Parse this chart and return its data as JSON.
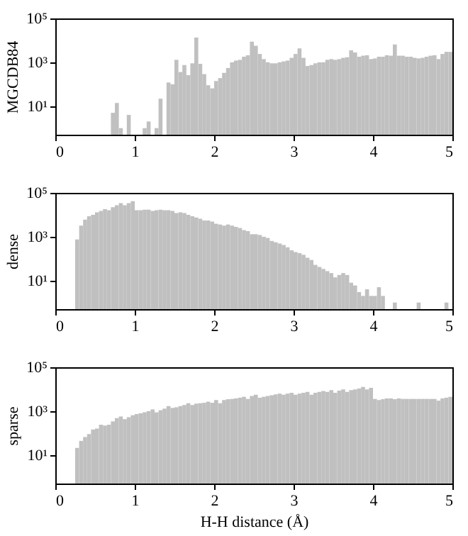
{
  "chart_data": [
    {
      "type": "histogram",
      "ylabel": "MGCDB84",
      "color": "#c0c0c0",
      "log": true,
      "xlim": [
        0,
        5
      ],
      "xticks": [
        0,
        1,
        2,
        3,
        4,
        5
      ],
      "ylim": [
        0.5,
        100000
      ],
      "yticks": [
        {
          "value": 10,
          "label": "10¹"
        },
        {
          "value": 1000,
          "label": "10³"
        },
        {
          "value": 100000,
          "label": "10⁵"
        }
      ],
      "bins": [
        0,
        0.05,
        0.1,
        0.15,
        0.2,
        0.25,
        0.3,
        0.35,
        0.4,
        0.45,
        0.5,
        0.55,
        0.6,
        0.65,
        0.7,
        0.75,
        0.8,
        0.85,
        0.9,
        0.95,
        1,
        1.05,
        1.1,
        1.15,
        1.2,
        1.25,
        1.3,
        1.35,
        1.4,
        1.45,
        1.5,
        1.55,
        1.6,
        1.65,
        1.7,
        1.75,
        1.8,
        1.85,
        1.9,
        1.95,
        2,
        2.05,
        2.1,
        2.15,
        2.2,
        2.25,
        2.3,
        2.35,
        2.4,
        2.45,
        2.5,
        2.55,
        2.6,
        2.65,
        2.7,
        2.75,
        2.8,
        2.85,
        2.9,
        2.95,
        3,
        3.05,
        3.1,
        3.15,
        3.2,
        3.25,
        3.3,
        3.35,
        3.4,
        3.45,
        3.5,
        3.55,
        3.6,
        3.65,
        3.7,
        3.75,
        3.8,
        3.85,
        3.9,
        3.95,
        4,
        4.05,
        4.1,
        4.15,
        4.2,
        4.25,
        4.3,
        4.35,
        4.4,
        4.45,
        4.5,
        4.55,
        4.6,
        4.65,
        4.7,
        4.75,
        4.8,
        4.85,
        4.9,
        4.95,
        5
      ],
      "values": [
        null,
        null,
        null,
        null,
        null,
        null,
        null,
        null,
        null,
        null,
        null,
        null,
        null,
        null,
        5,
        14,
        1,
        null,
        4,
        null,
        null,
        null,
        1,
        2,
        null,
        1,
        22,
        null,
        120,
        100,
        1300,
        360,
        750,
        260,
        900,
        13500,
        850,
        290,
        90,
        65,
        140,
        190,
        330,
        550,
        1000,
        1200,
        1300,
        1800,
        2100,
        8700,
        5700,
        2400,
        1400,
        1000,
        900,
        900,
        1000,
        1100,
        1200,
        1600,
        2400,
        4300,
        1600,
        680,
        750,
        900,
        1000,
        1000,
        1300,
        1400,
        1300,
        1400,
        1600,
        1700,
        3500,
        2800,
        1800,
        2000,
        2100,
        1400,
        1500,
        1800,
        1800,
        2100,
        2000,
        6500,
        2000,
        2000,
        1800,
        1800,
        1600,
        1500,
        1600,
        1800,
        2000,
        2100,
        1400,
        2400,
        3000,
        3000
      ]
    },
    {
      "type": "histogram",
      "ylabel": "dense",
      "color": "#c0c0c0",
      "log": true,
      "xlim": [
        0,
        5
      ],
      "xticks": [
        0,
        1,
        2,
        3,
        4,
        5
      ],
      "ylim": [
        0.5,
        100000
      ],
      "yticks": [
        {
          "value": 10,
          "label": "10¹"
        },
        {
          "value": 1000,
          "label": "10³"
        },
        {
          "value": 100000,
          "label": "10⁵"
        }
      ],
      "bins": [
        0,
        0.05,
        0.1,
        0.15,
        0.2,
        0.25,
        0.3,
        0.35,
        0.4,
        0.45,
        0.5,
        0.55,
        0.6,
        0.65,
        0.7,
        0.75,
        0.8,
        0.85,
        0.9,
        0.95,
        1,
        1.05,
        1.1,
        1.15,
        1.2,
        1.25,
        1.3,
        1.35,
        1.4,
        1.45,
        1.5,
        1.55,
        1.6,
        1.65,
        1.7,
        1.75,
        1.8,
        1.85,
        1.9,
        1.95,
        2,
        2.05,
        2.1,
        2.15,
        2.2,
        2.25,
        2.3,
        2.35,
        2.4,
        2.45,
        2.5,
        2.55,
        2.6,
        2.65,
        2.7,
        2.75,
        2.8,
        2.85,
        2.9,
        2.95,
        3,
        3.05,
        3.1,
        3.15,
        3.2,
        3.25,
        3.3,
        3.35,
        3.4,
        3.45,
        3.5,
        3.55,
        3.6,
        3.65,
        3.7,
        3.75,
        3.8,
        3.85,
        3.9,
        3.95,
        4,
        4.05,
        4.1,
        4.15,
        4.2,
        4.25,
        4.3,
        4.35,
        4.4,
        4.45,
        4.5,
        4.55,
        4.6,
        4.65,
        4.7,
        4.75,
        4.8,
        4.85,
        4.9,
        4.95,
        5
      ],
      "values": [
        null,
        null,
        null,
        null,
        null,
        750,
        3200,
        6000,
        8500,
        10000,
        13000,
        15000,
        18000,
        16000,
        22000,
        27000,
        34000,
        27000,
        34000,
        42000,
        16000,
        16000,
        17000,
        17000,
        15000,
        16000,
        17000,
        16000,
        16000,
        15000,
        12000,
        13000,
        12000,
        10000,
        8500,
        7500,
        6600,
        5500,
        5500,
        4900,
        3900,
        3600,
        3200,
        3600,
        3200,
        2800,
        2500,
        2000,
        1800,
        1300,
        1300,
        1200,
        1000,
        880,
        640,
        560,
        490,
        420,
        330,
        240,
        200,
        180,
        150,
        110,
        87,
        52,
        42,
        34,
        27,
        22,
        14,
        18,
        22,
        18,
        8,
        6,
        3,
        2,
        4,
        2,
        2,
        5,
        2,
        null,
        null,
        1,
        null,
        null,
        null,
        null,
        null,
        1,
        null,
        null,
        null,
        null,
        null,
        null,
        1,
        null
      ]
    },
    {
      "type": "histogram",
      "ylabel": "sparse",
      "xlabel": "H-H distance (Å)",
      "color": "#c0c0c0",
      "log": true,
      "xlim": [
        0,
        5
      ],
      "xticks": [
        0,
        1,
        2,
        3,
        4,
        5
      ],
      "ylim": [
        0.5,
        100000
      ],
      "yticks": [
        {
          "value": 10,
          "label": "10¹"
        },
        {
          "value": 1000,
          "label": "10³"
        },
        {
          "value": 100000,
          "label": "10⁵"
        }
      ],
      "bins": [
        0,
        0.05,
        0.1,
        0.15,
        0.2,
        0.25,
        0.3,
        0.35,
        0.4,
        0.45,
        0.5,
        0.55,
        0.6,
        0.65,
        0.7,
        0.75,
        0.8,
        0.85,
        0.9,
        0.95,
        1,
        1.05,
        1.1,
        1.15,
        1.2,
        1.25,
        1.3,
        1.35,
        1.4,
        1.45,
        1.5,
        1.55,
        1.6,
        1.65,
        1.7,
        1.75,
        1.8,
        1.85,
        1.9,
        1.95,
        2,
        2.05,
        2.1,
        2.15,
        2.2,
        2.25,
        2.3,
        2.35,
        2.4,
        2.45,
        2.5,
        2.55,
        2.6,
        2.65,
        2.7,
        2.75,
        2.8,
        2.85,
        2.9,
        2.95,
        3,
        3.05,
        3.1,
        3.15,
        3.2,
        3.25,
        3.3,
        3.35,
        3.4,
        3.45,
        3.5,
        3.55,
        3.6,
        3.65,
        3.7,
        3.75,
        3.8,
        3.85,
        3.9,
        3.95,
        4,
        4.05,
        4.1,
        4.15,
        4.2,
        4.25,
        4.3,
        4.35,
        4.4,
        4.45,
        4.5,
        4.55,
        4.6,
        4.65,
        4.7,
        4.75,
        4.8,
        4.85,
        4.9,
        4.95,
        5
      ],
      "values": [
        null,
        null,
        null,
        null,
        null,
        21,
        44,
        66,
        90,
        145,
        160,
        240,
        220,
        240,
        340,
        480,
        570,
        430,
        530,
        650,
        740,
        800,
        880,
        1000,
        1200,
        880,
        1100,
        1300,
        1700,
        1400,
        1500,
        1700,
        1900,
        2300,
        1900,
        2200,
        2300,
        2400,
        2700,
        2400,
        3200,
        2300,
        3200,
        3500,
        3600,
        3800,
        4100,
        4500,
        3600,
        4900,
        5600,
        4100,
        4500,
        4900,
        5300,
        5800,
        6300,
        5600,
        6300,
        6900,
        5600,
        6300,
        6900,
        7500,
        5600,
        6900,
        7500,
        8200,
        7500,
        9000,
        6900,
        8600,
        9800,
        7500,
        9000,
        9800,
        10700,
        12600,
        9800,
        11600,
        3600,
        3200,
        3500,
        3800,
        3800,
        3500,
        3800,
        3600,
        3600,
        3600,
        3600,
        3600,
        3600,
        3600,
        3600,
        3600,
        3000,
        3800,
        4100,
        4500
      ]
    }
  ]
}
